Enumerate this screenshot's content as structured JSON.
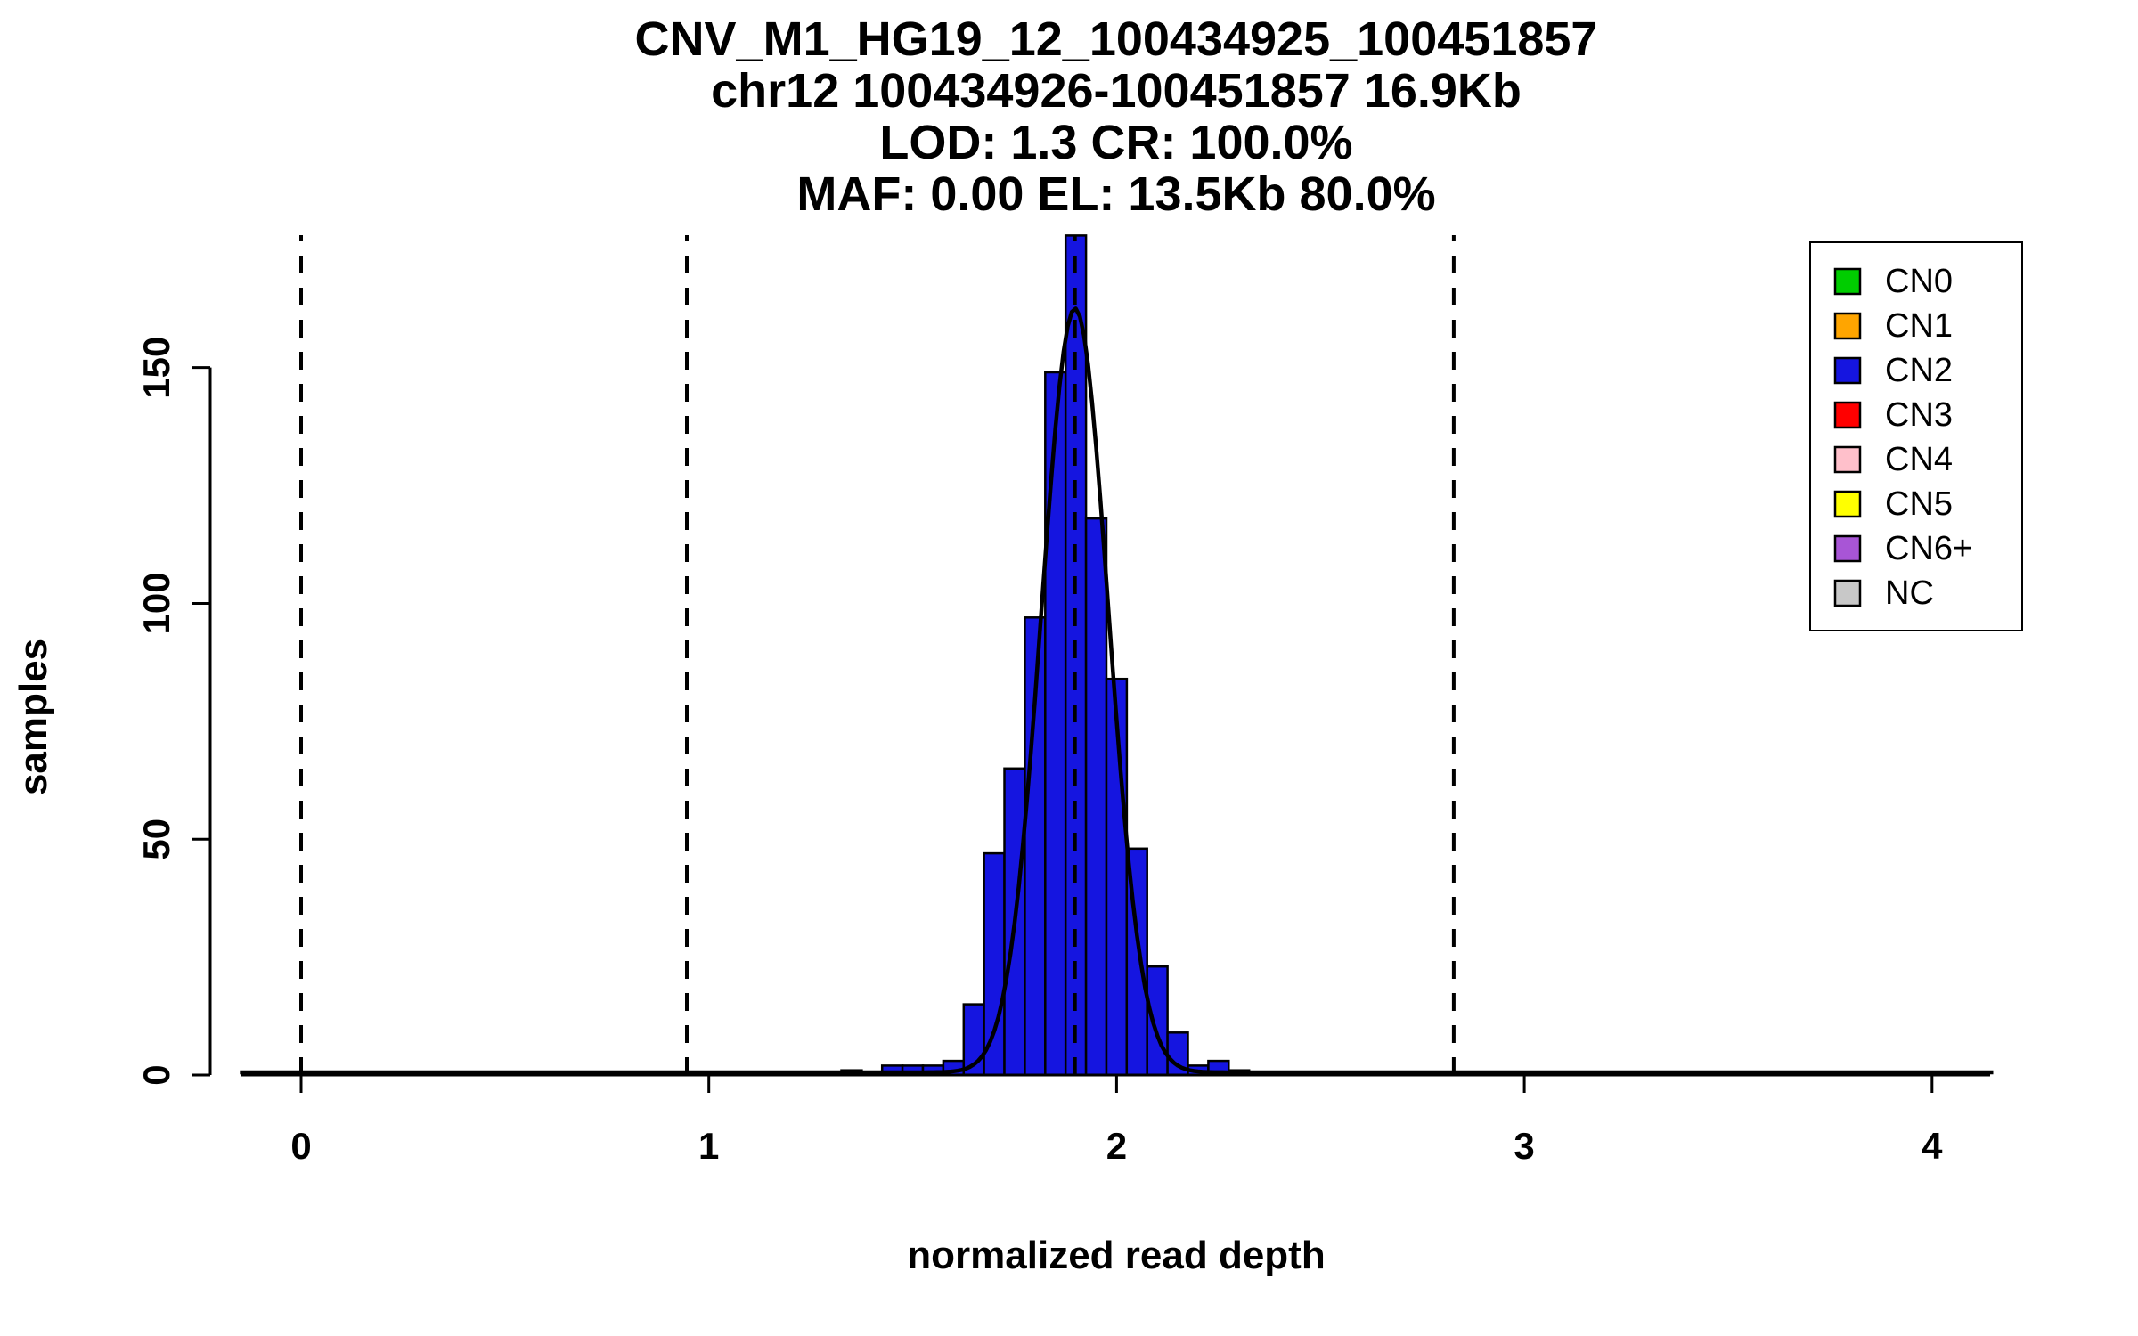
{
  "figure": {
    "background": "#ffffff"
  },
  "chart_data": {
    "type": "bar",
    "subtype": "histogram-with-gaussian-fit",
    "title_lines": [
      "CNV_M1_HG19_12_100434925_100451857",
      "chr12 100434926-100451857 16.9Kb",
      "LOD: 1.3 CR: 100.0%",
      "MAF: 0.00 EL: 13.5Kb 80.0%"
    ],
    "xlabel": "normalized read depth",
    "ylabel": "samples",
    "x_ticks": [
      0,
      1,
      2,
      3,
      4
    ],
    "y_ticks": [
      0,
      50,
      100,
      150
    ],
    "xlim": [
      -0.15,
      4.15
    ],
    "ylim": [
      0,
      178
    ],
    "grid": false,
    "bin_width": 0.05,
    "bin_left_edges": [
      1.325,
      1.425,
      1.475,
      1.525,
      1.575,
      1.625,
      1.675,
      1.725,
      1.775,
      1.825,
      1.875,
      1.925,
      1.975,
      2.025,
      2.075,
      2.125,
      2.175,
      2.225,
      2.275
    ],
    "counts": [
      1,
      2,
      2,
      2,
      3,
      15,
      47,
      65,
      97,
      149,
      178,
      118,
      84,
      48,
      23,
      9,
      2,
      3,
      1
    ],
    "bar_color": "#1515E0",
    "bar_color_key": "CN2",
    "curve": {
      "shape": "gaussian",
      "mean": 1.898,
      "sd": 0.082,
      "peak": 162
    },
    "dashed_lines_x": [
      0,
      0.946,
      1.898,
      2.827
    ],
    "legend": {
      "position": "top-right",
      "items": [
        {
          "label": "CN0",
          "color": "#00CD00"
        },
        {
          "label": "CN1",
          "color": "#FFA500"
        },
        {
          "label": "CN2",
          "color": "#1515E0"
        },
        {
          "label": "CN3",
          "color": "#FF0000"
        },
        {
          "label": "CN4",
          "color": "#FFC0CB"
        },
        {
          "label": "CN5",
          "color": "#FFFF00"
        },
        {
          "label": "CN6+",
          "color": "#A855D6"
        },
        {
          "label": "NC",
          "color": "#C8C8C8"
        }
      ]
    }
  }
}
